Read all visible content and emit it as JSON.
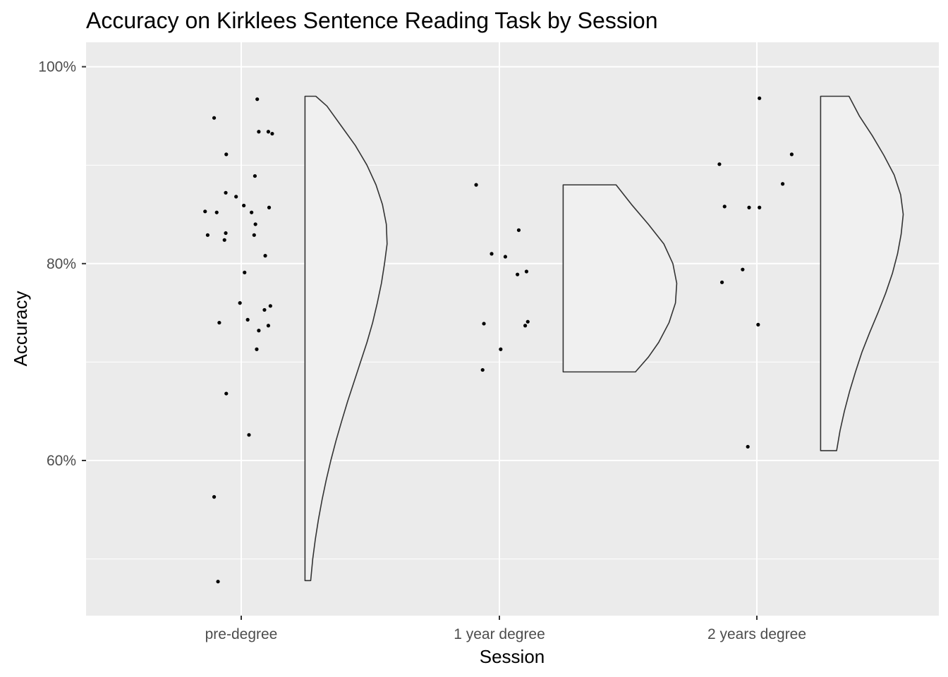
{
  "chart_data": {
    "type": "raincloud",
    "title": "Accuracy on Kirklees Sentence Reading Task by Session",
    "xlabel": "Session",
    "ylabel": "Accuracy",
    "categories": [
      "pre-degree",
      "1 year degree",
      "2 years degree"
    ],
    "y_ticks": [
      0.6,
      0.8,
      1.0
    ],
    "y_tick_labels": [
      "60%",
      "80%",
      "100%"
    ],
    "ylim": [
      0.4424,
      1.0248
    ],
    "grid": true,
    "colors": {
      "panel": "#ebebeb",
      "grid": "#ffffff",
      "violin_fill": "#f0f0f0",
      "violin_stroke": "#333333",
      "point": "#000000"
    },
    "series": [
      {
        "category": "pre-degree",
        "points": [
          {
            "jitter": -0.105,
            "y": 0.948
          },
          {
            "jitter": 0.062,
            "y": 0.967
          },
          {
            "jitter": 0.068,
            "y": 0.934
          },
          {
            "jitter": 0.105,
            "y": 0.934
          },
          {
            "jitter": 0.12,
            "y": 0.932
          },
          {
            "jitter": -0.058,
            "y": 0.911
          },
          {
            "jitter": 0.053,
            "y": 0.889
          },
          {
            "jitter": -0.06,
            "y": 0.872
          },
          {
            "jitter": -0.02,
            "y": 0.868
          },
          {
            "jitter": 0.01,
            "y": 0.859
          },
          {
            "jitter": 0.108,
            "y": 0.857
          },
          {
            "jitter": -0.14,
            "y": 0.853
          },
          {
            "jitter": -0.095,
            "y": 0.852
          },
          {
            "jitter": 0.04,
            "y": 0.852
          },
          {
            "jitter": 0.055,
            "y": 0.84
          },
          {
            "jitter": -0.13,
            "y": 0.829
          },
          {
            "jitter": -0.06,
            "y": 0.831
          },
          {
            "jitter": 0.05,
            "y": 0.829
          },
          {
            "jitter": -0.065,
            "y": 0.824
          },
          {
            "jitter": 0.093,
            "y": 0.808
          },
          {
            "jitter": 0.013,
            "y": 0.791
          },
          {
            "jitter": -0.005,
            "y": 0.76
          },
          {
            "jitter": 0.113,
            "y": 0.757
          },
          {
            "jitter": 0.09,
            "y": 0.753
          },
          {
            "jitter": 0.025,
            "y": 0.743
          },
          {
            "jitter": -0.085,
            "y": 0.74
          },
          {
            "jitter": 0.105,
            "y": 0.737
          },
          {
            "jitter": 0.068,
            "y": 0.732
          },
          {
            "jitter": 0.06,
            "y": 0.713
          },
          {
            "jitter": -0.058,
            "y": 0.668
          },
          {
            "jitter": 0.03,
            "y": 0.626
          },
          {
            "jitter": -0.105,
            "y": 0.563
          },
          {
            "jitter": -0.09,
            "y": 0.477
          }
        ],
        "violin": {
          "ymin": 0.478,
          "ymax": 0.97,
          "profile": [
            [
              0.478,
              0.022
            ],
            [
              0.5,
              0.03
            ],
            [
              0.52,
              0.04
            ],
            [
              0.54,
              0.052
            ],
            [
              0.56,
              0.066
            ],
            [
              0.58,
              0.082
            ],
            [
              0.6,
              0.1
            ],
            [
              0.62,
              0.12
            ],
            [
              0.64,
              0.142
            ],
            [
              0.66,
              0.165
            ],
            [
              0.68,
              0.19
            ],
            [
              0.7,
              0.215
            ],
            [
              0.72,
              0.24
            ],
            [
              0.74,
              0.262
            ],
            [
              0.76,
              0.28
            ],
            [
              0.78,
              0.296
            ],
            [
              0.8,
              0.308
            ],
            [
              0.82,
              0.318
            ],
            [
              0.84,
              0.315
            ],
            [
              0.86,
              0.3
            ],
            [
              0.88,
              0.275
            ],
            [
              0.9,
              0.24
            ],
            [
              0.92,
              0.195
            ],
            [
              0.94,
              0.14
            ],
            [
              0.96,
              0.085
            ],
            [
              0.97,
              0.042
            ]
          ]
        }
      },
      {
        "category": "1 year degree",
        "points": [
          {
            "jitter": -0.09,
            "y": 0.88
          },
          {
            "jitter": 0.075,
            "y": 0.834
          },
          {
            "jitter": -0.03,
            "y": 0.81
          },
          {
            "jitter": 0.023,
            "y": 0.807
          },
          {
            "jitter": 0.105,
            "y": 0.792
          },
          {
            "jitter": 0.07,
            "y": 0.789
          },
          {
            "jitter": 0.11,
            "y": 0.741
          },
          {
            "jitter": -0.06,
            "y": 0.739
          },
          {
            "jitter": 0.1,
            "y": 0.737
          },
          {
            "jitter": 0.005,
            "y": 0.713
          },
          {
            "jitter": -0.065,
            "y": 0.692
          }
        ],
        "violin": {
          "ymin": 0.69,
          "ymax": 0.88,
          "profile": [
            [
              0.69,
              0.0
            ],
            [
              0.69,
              0.28
            ],
            [
              0.705,
              0.33
            ],
            [
              0.72,
              0.37
            ],
            [
              0.74,
              0.41
            ],
            [
              0.76,
              0.435
            ],
            [
              0.78,
              0.44
            ],
            [
              0.8,
              0.425
            ],
            [
              0.82,
              0.39
            ],
            [
              0.84,
              0.33
            ],
            [
              0.86,
              0.265
            ],
            [
              0.88,
              0.205
            ]
          ]
        }
      },
      {
        "category": "2 years degree",
        "points": [
          {
            "jitter": 0.01,
            "y": 0.968
          },
          {
            "jitter": 0.135,
            "y": 0.911
          },
          {
            "jitter": -0.145,
            "y": 0.901
          },
          {
            "jitter": 0.1,
            "y": 0.881
          },
          {
            "jitter": -0.125,
            "y": 0.858
          },
          {
            "jitter": -0.03,
            "y": 0.857
          },
          {
            "jitter": 0.01,
            "y": 0.857
          },
          {
            "jitter": -0.055,
            "y": 0.794
          },
          {
            "jitter": -0.135,
            "y": 0.781
          },
          {
            "jitter": 0.005,
            "y": 0.738
          },
          {
            "jitter": -0.035,
            "y": 0.614
          }
        ],
        "violin": {
          "ymin": 0.61,
          "ymax": 0.97,
          "profile": [
            [
              0.61,
              0.062
            ],
            [
              0.63,
              0.075
            ],
            [
              0.65,
              0.092
            ],
            [
              0.67,
              0.112
            ],
            [
              0.69,
              0.135
            ],
            [
              0.71,
              0.16
            ],
            [
              0.73,
              0.19
            ],
            [
              0.75,
              0.222
            ],
            [
              0.77,
              0.252
            ],
            [
              0.79,
              0.278
            ],
            [
              0.81,
              0.298
            ],
            [
              0.83,
              0.312
            ],
            [
              0.85,
              0.32
            ],
            [
              0.87,
              0.31
            ],
            [
              0.89,
              0.285
            ],
            [
              0.91,
              0.245
            ],
            [
              0.93,
              0.2
            ],
            [
              0.95,
              0.15
            ],
            [
              0.97,
              0.11
            ]
          ]
        }
      }
    ]
  }
}
